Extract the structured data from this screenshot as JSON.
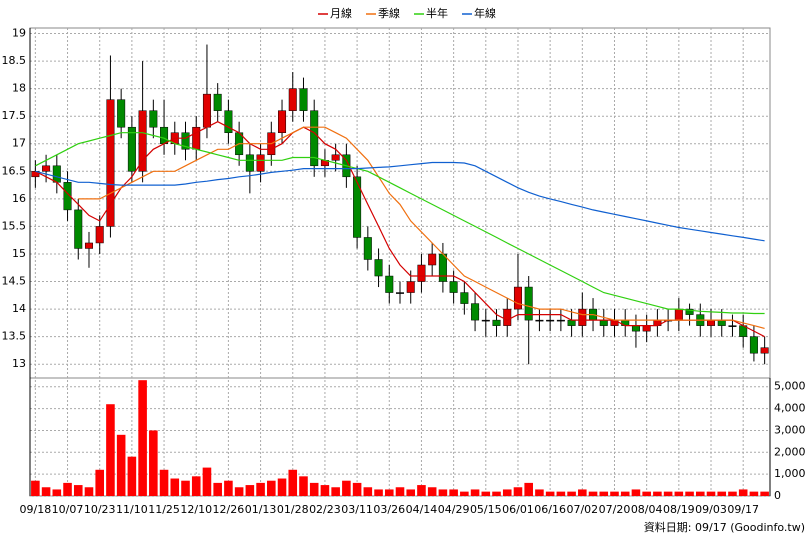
{
  "chart_data": [
    {
      "type": "candlestick",
      "categories": [
        "09/18",
        null,
        null,
        "10/07",
        null,
        null,
        "10/23",
        null,
        null,
        "11/10",
        null,
        null,
        "11/25",
        null,
        null,
        "12/10",
        null,
        null,
        "12/26",
        null,
        null,
        "01/13",
        null,
        null,
        "01/28",
        null,
        null,
        "02/23",
        null,
        null,
        "03/11",
        null,
        null,
        "03/26",
        null,
        null,
        "04/14",
        null,
        null,
        "04/29",
        null,
        null,
        "05/15",
        null,
        null,
        "06/01",
        null,
        null,
        "06/16",
        null,
        null,
        "07/02",
        null,
        null,
        "07/20",
        null,
        null,
        "08/04",
        null,
        null,
        "08/19",
        null,
        null,
        "09/03",
        null,
        null,
        "09/17",
        null,
        null
      ],
      "open": [
        16.4,
        16.5,
        16.6,
        16.3,
        15.8,
        15.1,
        15.2,
        15.5,
        17.8,
        17.3,
        16.5,
        17.6,
        17.3,
        17.0,
        17.2,
        16.9,
        17.3,
        17.9,
        17.6,
        17.2,
        16.8,
        16.5,
        16.8,
        17.2,
        17.6,
        18.0,
        17.6,
        16.6,
        16.7,
        16.8,
        16.4,
        15.3,
        14.9,
        14.6,
        14.3,
        14.3,
        14.5,
        14.8,
        15.0,
        14.5,
        14.3,
        14.1,
        13.8,
        13.8,
        13.7,
        14.0,
        14.4,
        13.8,
        13.8,
        13.8,
        13.8,
        13.7,
        14.0,
        13.8,
        13.7,
        13.8,
        13.7,
        13.6,
        13.7,
        13.8,
        13.8,
        14.0,
        13.9,
        13.7,
        13.8,
        13.7,
        13.7,
        13.5,
        13.2
      ],
      "close": [
        16.5,
        16.6,
        16.3,
        15.8,
        15.1,
        15.2,
        15.5,
        17.8,
        17.3,
        16.5,
        17.6,
        17.3,
        17.0,
        17.2,
        16.9,
        17.3,
        17.9,
        17.6,
        17.2,
        16.8,
        16.5,
        16.8,
        17.2,
        17.6,
        18.0,
        17.6,
        16.6,
        16.7,
        16.8,
        16.4,
        15.3,
        14.9,
        14.6,
        14.3,
        14.3,
        14.5,
        14.8,
        15.0,
        14.5,
        14.3,
        14.1,
        13.8,
        13.8,
        13.7,
        14.0,
        14.4,
        13.8,
        13.8,
        13.8,
        13.8,
        13.7,
        14.0,
        13.8,
        13.7,
        13.8,
        13.7,
        13.6,
        13.7,
        13.8,
        13.8,
        14.0,
        13.9,
        13.7,
        13.8,
        13.7,
        13.7,
        13.5,
        13.2,
        13.3
      ],
      "high": [
        16.7,
        16.8,
        16.8,
        16.5,
        16.0,
        15.4,
        15.7,
        18.6,
        18.0,
        17.5,
        18.5,
        17.8,
        17.8,
        17.4,
        17.4,
        17.5,
        18.8,
        18.1,
        17.8,
        17.4,
        17.0,
        17.0,
        17.4,
        17.8,
        18.3,
        18.2,
        17.8,
        16.9,
        17.0,
        17.0,
        16.6,
        15.5,
        15.1,
        14.8,
        14.5,
        14.7,
        15.0,
        15.2,
        15.2,
        14.7,
        14.5,
        14.3,
        14.0,
        14.0,
        14.2,
        15.0,
        14.6,
        14.0,
        14.0,
        14.0,
        14.0,
        14.3,
        14.2,
        14.0,
        14.0,
        14.0,
        13.9,
        13.9,
        14.0,
        14.0,
        14.2,
        14.1,
        14.1,
        14.0,
        14.0,
        13.9,
        13.9,
        13.7,
        13.5
      ],
      "low": [
        16.2,
        16.3,
        16.1,
        15.6,
        14.9,
        14.75,
        15.0,
        15.3,
        17.1,
        16.3,
        16.3,
        17.1,
        16.8,
        16.8,
        16.7,
        16.7,
        17.1,
        17.4,
        17.0,
        16.6,
        16.1,
        16.3,
        16.6,
        17.0,
        17.4,
        17.4,
        16.4,
        16.4,
        16.5,
        16.2,
        15.1,
        14.7,
        14.4,
        14.1,
        14.1,
        14.1,
        14.3,
        14.6,
        14.3,
        14.1,
        13.9,
        13.6,
        13.5,
        13.5,
        13.5,
        13.8,
        13.0,
        13.6,
        13.6,
        13.6,
        13.5,
        13.5,
        13.6,
        13.5,
        13.5,
        13.5,
        13.3,
        13.4,
        13.5,
        13.6,
        13.6,
        13.7,
        13.5,
        13.5,
        13.5,
        13.5,
        13.3,
        13.05,
        13.0
      ],
      "up_color": "#e00000",
      "down_color": "#008a00",
      "flat_color": "#000000",
      "series": [
        {
          "name": "月線",
          "color": "#d40000",
          "values": [
            16.5,
            16.4,
            16.3,
            16.1,
            15.9,
            15.7,
            15.6,
            15.9,
            16.2,
            16.4,
            16.7,
            16.9,
            17.0,
            17.1,
            17.1,
            17.2,
            17.3,
            17.4,
            17.3,
            17.2,
            17.0,
            16.9,
            16.9,
            17.0,
            17.2,
            17.3,
            17.2,
            17.0,
            16.9,
            16.7,
            16.3,
            15.9,
            15.5,
            15.1,
            14.8,
            14.6,
            14.6,
            14.6,
            14.6,
            14.6,
            14.5,
            14.3,
            14.1,
            13.9,
            13.8,
            13.9,
            13.9,
            13.9,
            13.9,
            13.9,
            13.8,
            13.8,
            13.8,
            13.8,
            13.8,
            13.7,
            13.7,
            13.7,
            13.7,
            13.8,
            13.8,
            13.8,
            13.8,
            13.8,
            13.8,
            13.8,
            13.7,
            13.6,
            13.5
          ]
        },
        {
          "name": "季線",
          "color": "#f07010",
          "values": [
            null,
            null,
            null,
            null,
            16.0,
            16.0,
            16.0,
            16.1,
            16.2,
            16.3,
            16.4,
            16.5,
            16.5,
            16.5,
            16.6,
            16.7,
            16.8,
            16.9,
            16.9,
            17.0,
            17.0,
            17.0,
            17.0,
            17.1,
            17.2,
            17.3,
            17.3,
            17.3,
            17.2,
            17.1,
            16.9,
            16.7,
            16.4,
            16.1,
            15.9,
            15.6,
            15.4,
            15.2,
            15.0,
            14.8,
            14.6,
            14.5,
            14.4,
            14.3,
            14.2,
            14.1,
            14.05,
            14.0,
            14.0,
            14.0,
            13.95,
            13.9,
            13.9,
            13.85,
            13.8,
            13.8,
            13.8,
            13.8,
            13.8,
            13.8,
            13.8,
            13.8,
            13.8,
            13.8,
            13.8,
            13.8,
            13.75,
            13.7,
            13.65
          ]
        },
        {
          "name": "半年",
          "color": "#30d010",
          "values": [
            16.6,
            16.7,
            16.8,
            16.9,
            17.0,
            17.05,
            17.1,
            17.15,
            17.2,
            17.2,
            17.2,
            17.15,
            17.1,
            17.0,
            16.95,
            16.9,
            16.85,
            16.8,
            16.75,
            16.7,
            16.7,
            16.7,
            16.7,
            16.7,
            16.75,
            16.75,
            16.75,
            16.7,
            16.65,
            16.6,
            16.55,
            16.5,
            16.4,
            16.3,
            16.2,
            16.1,
            16.0,
            15.9,
            15.8,
            15.7,
            15.6,
            15.5,
            15.4,
            15.3,
            15.2,
            15.1,
            15.0,
            14.9,
            14.8,
            14.7,
            14.6,
            14.5,
            14.4,
            14.3,
            14.25,
            14.2,
            14.15,
            14.1,
            14.05,
            14.0,
            14.0,
            13.98,
            13.96,
            13.95,
            13.94,
            13.93,
            13.93,
            13.92,
            13.92
          ]
        },
        {
          "name": "年線",
          "color": "#1060d0",
          "values": [
            16.5,
            16.45,
            16.4,
            16.35,
            16.3,
            16.3,
            16.28,
            16.26,
            16.25,
            16.25,
            16.25,
            16.25,
            16.25,
            16.25,
            16.27,
            16.3,
            16.32,
            16.35,
            16.37,
            16.4,
            16.42,
            16.45,
            16.48,
            16.5,
            16.52,
            16.55,
            16.55,
            16.55,
            16.55,
            16.55,
            16.55,
            16.56,
            16.57,
            16.58,
            16.6,
            16.62,
            16.64,
            16.66,
            16.66,
            16.66,
            16.65,
            16.6,
            16.5,
            16.4,
            16.3,
            16.2,
            16.12,
            16.05,
            16.0,
            15.95,
            15.9,
            15.85,
            15.8,
            15.76,
            15.72,
            15.68,
            15.64,
            15.6,
            15.56,
            15.52,
            15.48,
            15.45,
            15.42,
            15.39,
            15.36,
            15.33,
            15.3,
            15.27,
            15.24
          ]
        }
      ],
      "ylim": [
        12.75,
        19.1
      ],
      "yticks": [
        13,
        13.5,
        14,
        14.5,
        15,
        15.5,
        16,
        16.5,
        17,
        17.5,
        18,
        18.5,
        19
      ],
      "grid": true,
      "source": "資料日期: 09/17 (Goodinfo.tw)"
    },
    {
      "type": "bar",
      "color": "#ff0000",
      "values": [
        700,
        400,
        300,
        600,
        500,
        400,
        1200,
        4200,
        2800,
        1800,
        5300,
        3000,
        1200,
        800,
        700,
        900,
        1300,
        600,
        700,
        400,
        500,
        600,
        700,
        800,
        1200,
        900,
        600,
        500,
        400,
        700,
        600,
        400,
        300,
        300,
        400,
        300,
        500,
        400,
        300,
        300,
        200,
        300,
        200,
        200,
        300,
        400,
        600,
        300,
        200,
        200,
        200,
        300,
        200,
        200,
        200,
        200,
        300,
        200,
        200,
        200,
        200,
        200,
        200,
        200,
        200,
        200,
        300,
        200,
        200
      ],
      "ylim": [
        0,
        5400
      ],
      "yticks": [
        0,
        {
          "value": 1000,
          "label": "1,000"
        },
        {
          "value": 2000,
          "label": "2,000"
        },
        {
          "value": 3000,
          "label": "3,000"
        },
        {
          "value": 4000,
          "label": "4,000"
        },
        {
          "value": 5000,
          "label": "5,000"
        }
      ],
      "grid": true
    }
  ]
}
